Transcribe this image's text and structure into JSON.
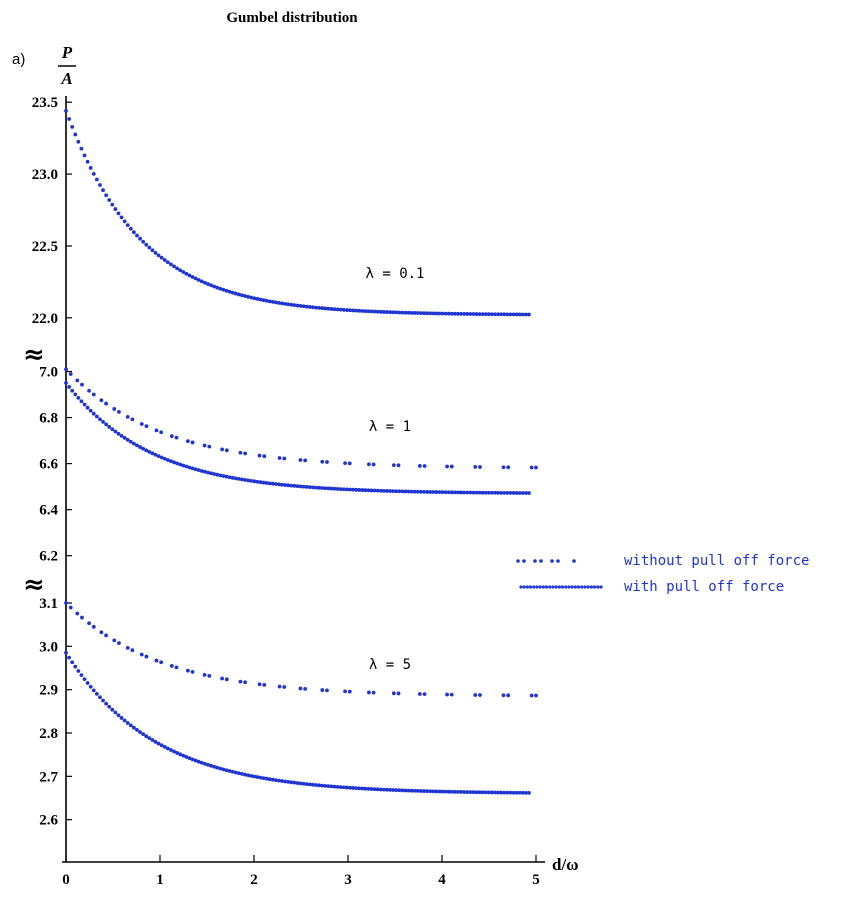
{
  "chart_data": {
    "type": "scatter",
    "title": "Gumbel distribution",
    "panel_label": "a)",
    "ylabel": {
      "numerator": "P",
      "denominator": "A"
    },
    "xlabel": "d/ω",
    "xlim": [
      0,
      5
    ],
    "x_ticks": [
      "0",
      "1",
      "2",
      "3",
      "4",
      "5"
    ],
    "axis_break_symbol": "≈",
    "color": "#1f35d0",
    "legend": {
      "position": "right",
      "entries": [
        {
          "label": "without pull off force",
          "style": "dashed-dots"
        },
        {
          "label": "with pull off force",
          "style": "dense-dots"
        }
      ]
    },
    "panels": [
      {
        "annotation": "λ = 0.1",
        "ylim": [
          21.95,
          23.55
        ],
        "y_ticks": [
          "22.0",
          "22.5",
          "23.0",
          "23.5"
        ],
        "series": [
          {
            "name": "with pull off force",
            "style": "dense",
            "p0": 23.44,
            "pinf": 22.02,
            "k": 1.25
          }
        ]
      },
      {
        "annotation": "λ = 1",
        "ylim": [
          6.19,
          7.05
        ],
        "y_ticks": [
          "6.2",
          "6.4",
          "6.6",
          "6.8",
          "7.0"
        ],
        "series": [
          {
            "name": "without pull off force",
            "style": "sparse",
            "p0": 7.01,
            "pinf": 6.58,
            "k": 1.0
          },
          {
            "name": "with pull off force",
            "style": "dense",
            "p0": 6.95,
            "pinf": 6.47,
            "k": 1.1
          }
        ]
      },
      {
        "annotation": "λ = 5",
        "ylim": [
          2.53,
          3.13
        ],
        "y_ticks": [
          "2.6",
          "2.7",
          "2.8",
          "2.9",
          "3.0",
          "3.1"
        ],
        "series": [
          {
            "name": "without pull off force",
            "style": "sparse",
            "p0": 3.1,
            "pinf": 2.885,
            "k": 1.0
          },
          {
            "name": "with pull off force",
            "style": "dense",
            "p0": 2.985,
            "pinf": 2.66,
            "k": 1.05
          }
        ]
      }
    ]
  }
}
